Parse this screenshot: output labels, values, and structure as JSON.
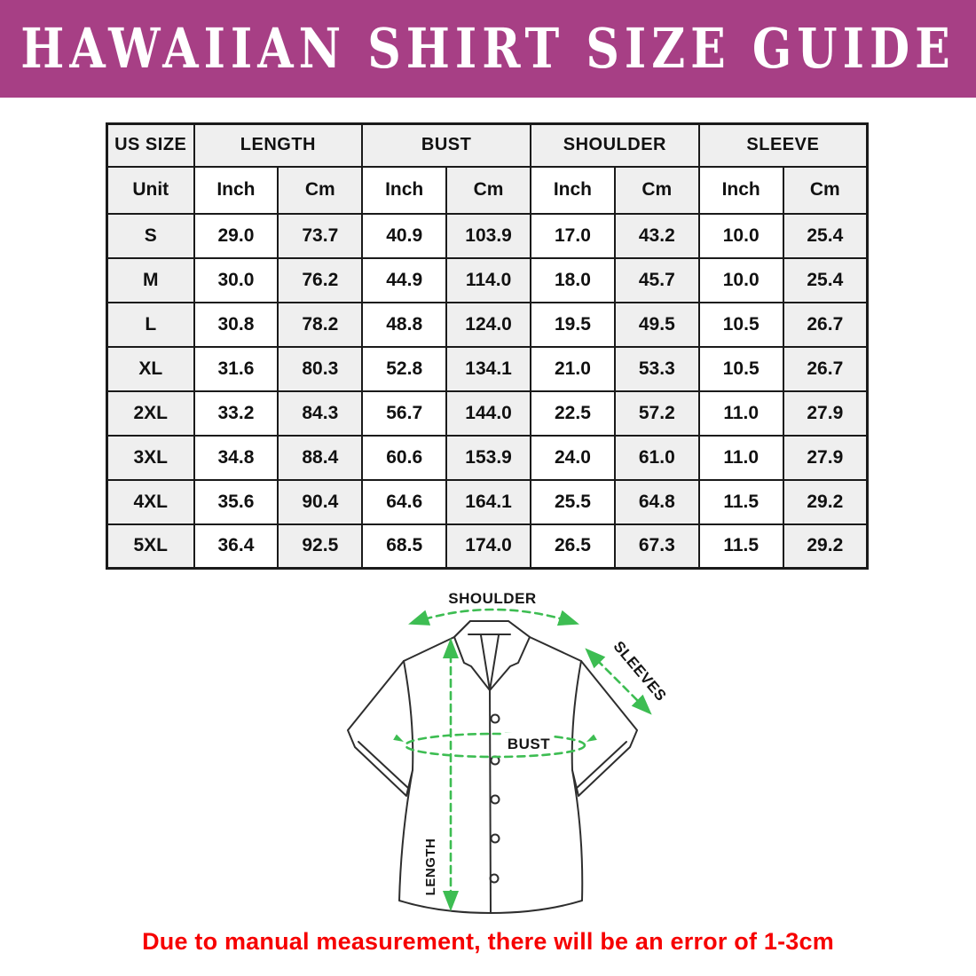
{
  "banner": {
    "title": "HAWAIIAN SHIRT SIZE GUIDE"
  },
  "colors": {
    "banner_bg": "#A73F85",
    "arrow_green": "#3DBD52",
    "footer_red": "#F60000",
    "cell_gray": "#EFEFEF"
  },
  "table": {
    "group_headers": [
      "US SIZE",
      "LENGTH",
      "BUST",
      "SHOULDER",
      "SLEEVE"
    ],
    "unit_row": [
      "Unit",
      "Inch",
      "Cm",
      "Inch",
      "Cm",
      "Inch",
      "Cm",
      "Inch",
      "Cm"
    ],
    "rows": [
      {
        "size": "S",
        "values": [
          "29.0",
          "73.7",
          "40.9",
          "103.9",
          "17.0",
          "43.2",
          "10.0",
          "25.4"
        ]
      },
      {
        "size": "M",
        "values": [
          "30.0",
          "76.2",
          "44.9",
          "114.0",
          "18.0",
          "45.7",
          "10.0",
          "25.4"
        ]
      },
      {
        "size": "L",
        "values": [
          "30.8",
          "78.2",
          "48.8",
          "124.0",
          "19.5",
          "49.5",
          "10.5",
          "26.7"
        ]
      },
      {
        "size": "XL",
        "values": [
          "31.6",
          "80.3",
          "52.8",
          "134.1",
          "21.0",
          "53.3",
          "10.5",
          "26.7"
        ]
      },
      {
        "size": "2XL",
        "values": [
          "33.2",
          "84.3",
          "56.7",
          "144.0",
          "22.5",
          "57.2",
          "11.0",
          "27.9"
        ]
      },
      {
        "size": "3XL",
        "values": [
          "34.8",
          "88.4",
          "60.6",
          "153.9",
          "24.0",
          "61.0",
          "11.0",
          "27.9"
        ]
      },
      {
        "size": "4XL",
        "values": [
          "35.6",
          "90.4",
          "64.6",
          "164.1",
          "25.5",
          "64.8",
          "11.5",
          "29.2"
        ]
      },
      {
        "size": "5XL",
        "values": [
          "36.4",
          "92.5",
          "68.5",
          "174.0",
          "26.5",
          "67.3",
          "11.5",
          "29.2"
        ]
      }
    ]
  },
  "diagram": {
    "labels": {
      "shoulder": "SHOULDER",
      "sleeves": "SLEEVES",
      "bust": "BUST",
      "length": "LENGTH"
    }
  },
  "footer": {
    "note": "Due to manual measurement, there will be an error of 1-3cm"
  }
}
